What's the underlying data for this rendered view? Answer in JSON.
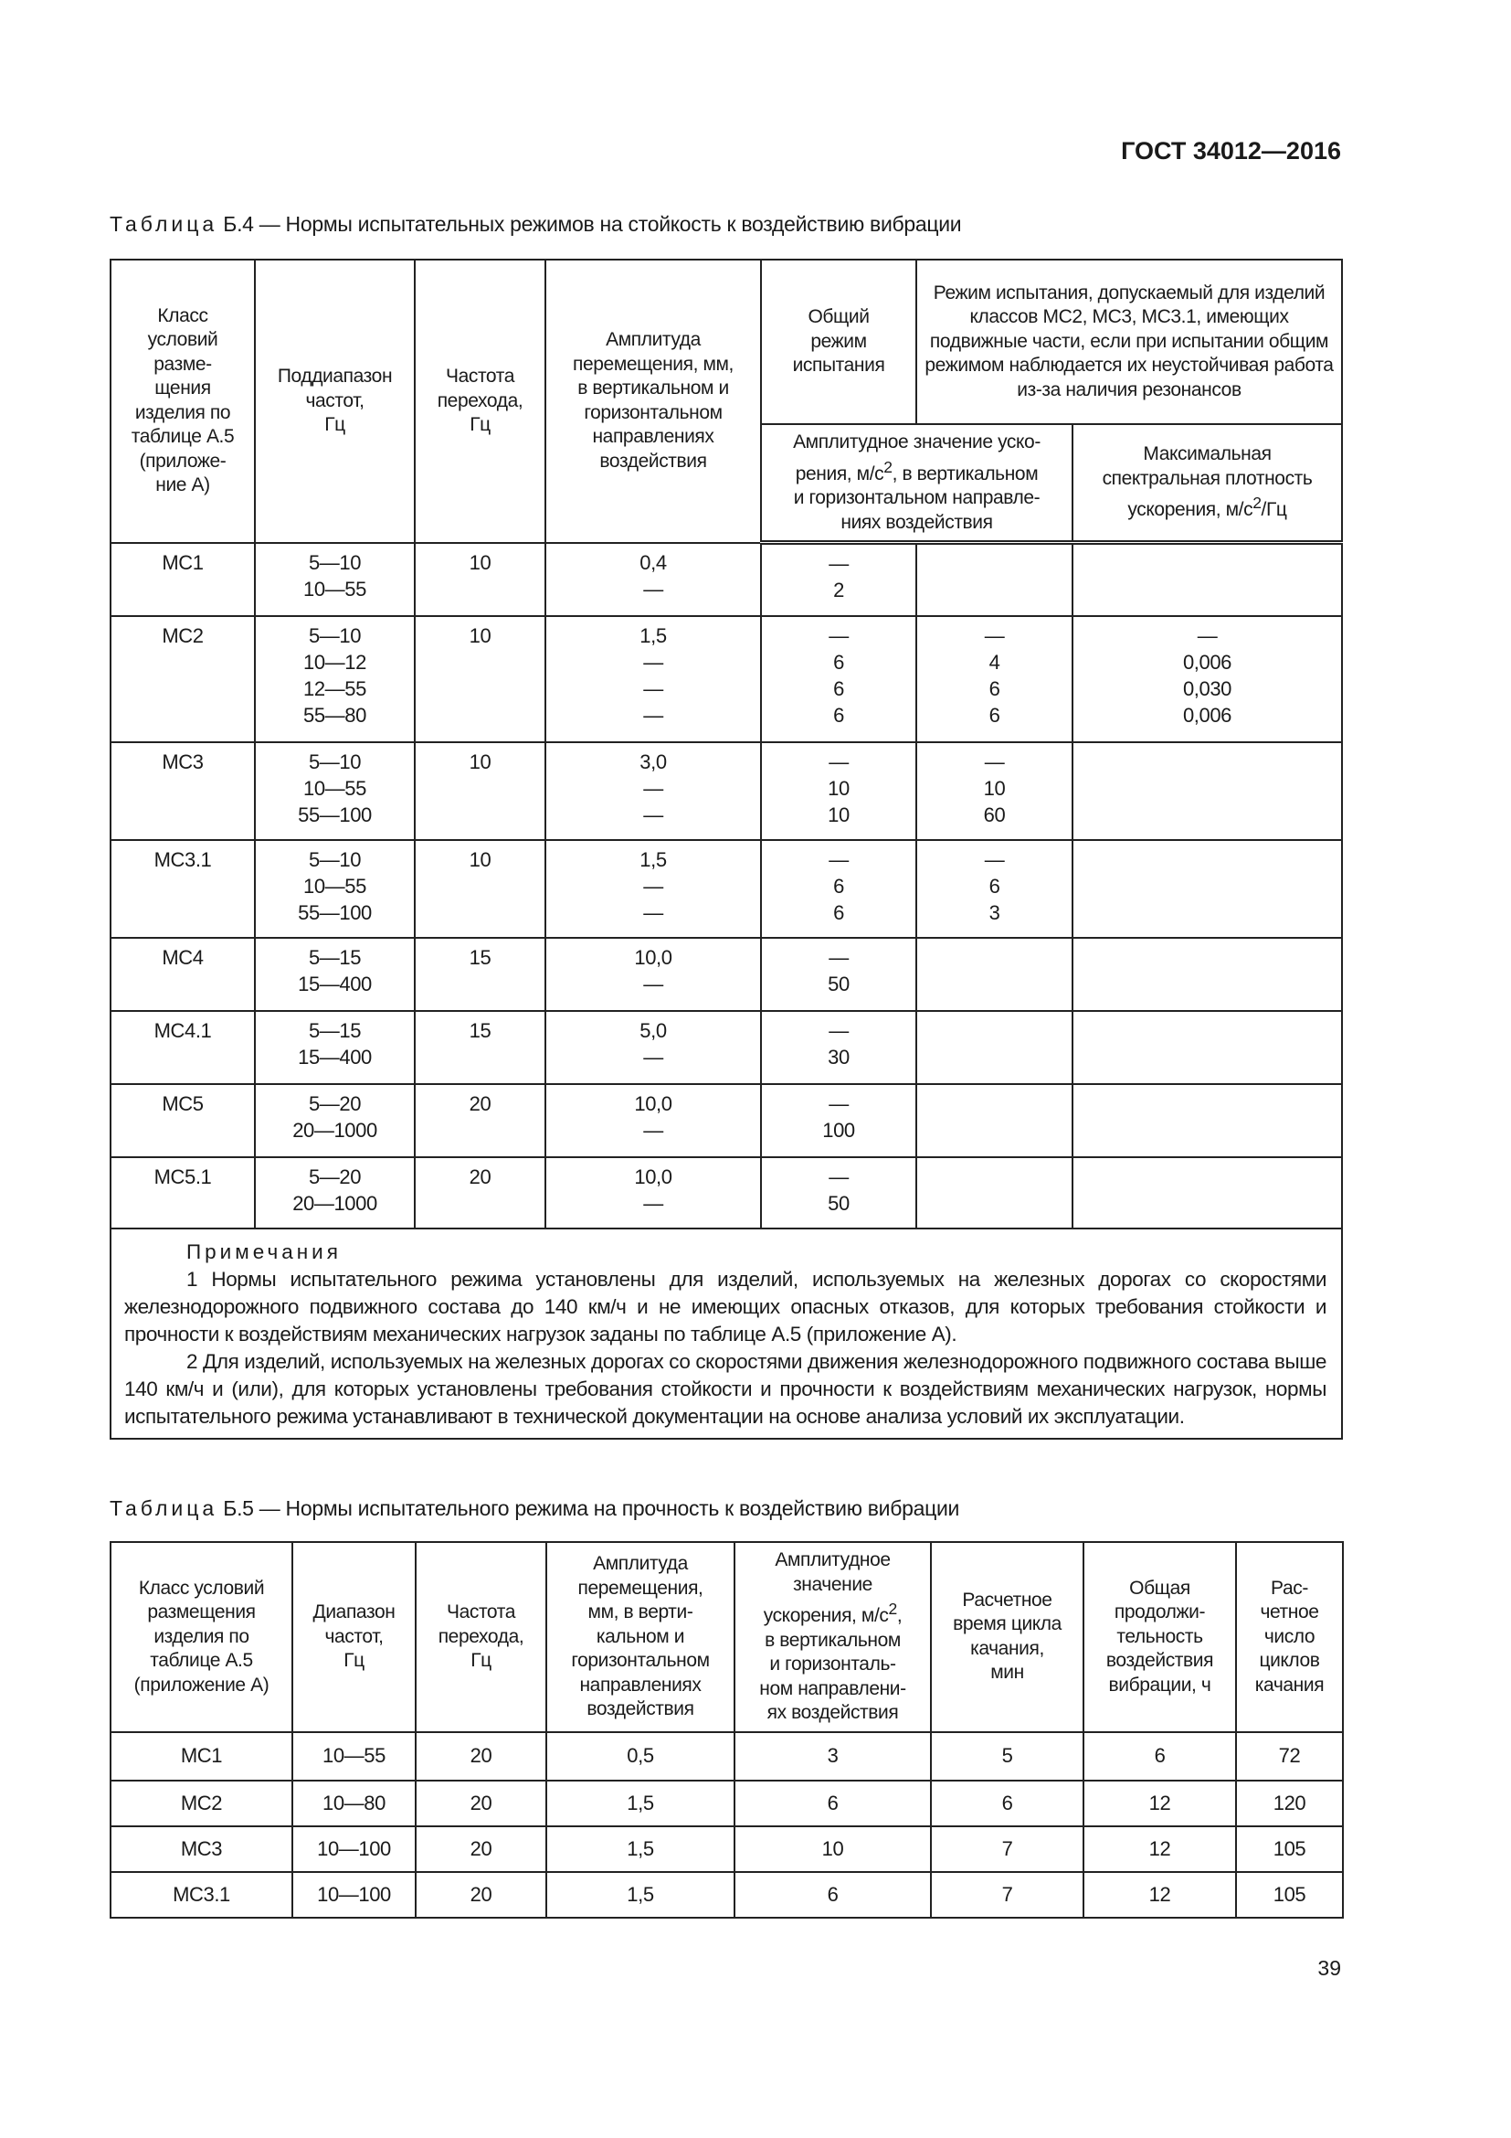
{
  "header": {
    "doc_code": "ГОСТ 34012—2016"
  },
  "table_b4": {
    "caption_word": "Таблица",
    "caption_text": " Б.4 — Нормы испытательных режимов на стойкость к воздействию вибрации",
    "headers": {
      "class": "Класс\nусловий\nразме-\nщения\nизделия по\nтаблице А.5\n(приложе-\nние А)",
      "subrange": "Поддиапазон\nчастот,\nГц",
      "transition": "Частота\nперехода,\nГц",
      "amplitude": "Амплитуда\nперемещения, мм,\nв вертикальном и\nгоризонтальном\nнаправлениях\nвоздействия",
      "general": "Общий\nрежим\nиспытания",
      "allowed": "Режим испытания, допускаемый для изделий классов МС2, МС3, МС3.1, имеющих подвижные части, если при испытании общим режимом наблюдается их неустойчивая работа из-за наличия резонансов",
      "accel_pre": "Амплитудное значение уско-\nрения, м/с",
      "accel_post": ", в вертикальном\nи горизонтальном направле-\nниях воздействия",
      "psd_pre": "Максимальная\nспектральная плотность\nускорения, м/с",
      "psd_post": "/Гц",
      "sup": "2"
    },
    "rows": [
      {
        "cls": "МС1",
        "range": "5—10\n10—55",
        "trans": "10",
        "amp": "0,4\n—",
        "gen": "—\n2",
        "acc": "",
        "psd": ""
      },
      {
        "cls": "МС2",
        "range": "5—10\n10—12\n12—55\n55—80",
        "trans": "10",
        "amp": "1,5\n—\n—\n—",
        "gen": "—\n6\n6\n6",
        "acc": "—\n4\n6\n6",
        "psd": "—\n0,006\n0,030\n0,006"
      },
      {
        "cls": "МС3",
        "range": "5—10\n10—55\n55—100",
        "trans": "10",
        "amp": "3,0\n—\n—",
        "gen": "—\n10\n10",
        "acc": "—\n10\n60",
        "psd": ""
      },
      {
        "cls": "МС3.1",
        "range": "5—10\n10—55\n55—100",
        "trans": "10",
        "amp": "1,5\n—\n—",
        "gen": "—\n6\n6",
        "acc": "—\n6\n3",
        "psd": ""
      },
      {
        "cls": "МС4",
        "range": "5—15\n15—400",
        "trans": "15",
        "amp": "10,0\n—",
        "gen": "—\n50",
        "acc": "",
        "psd": ""
      },
      {
        "cls": "МС4.1",
        "range": "5—15\n15—400",
        "trans": "15",
        "amp": "5,0\n—",
        "gen": "—\n30",
        "acc": "",
        "psd": ""
      },
      {
        "cls": "МС5",
        "range": "5—20\n20—1000",
        "trans": "20",
        "amp": "10,0\n—",
        "gen": "—\n100",
        "acc": "",
        "psd": ""
      },
      {
        "cls": "МС5.1",
        "range": "5—20\n20—1000",
        "trans": "20",
        "amp": "10,0\n—",
        "gen": "—\n50",
        "acc": "",
        "psd": ""
      }
    ],
    "notes_title": "Примечания",
    "notes": [
      "1 Нормы испытательного режима установлены для изделий, используемых на железных дорогах со скоростями железнодорожного подвижного состава до 140 км/ч и не имеющих опасных отказов, для которых требования стойкости и прочности к воздействиям механических нагрузок заданы по таблице А.5 (приложение А).",
      "2 Для изделий, используемых на железных дорогах со скоростями движения железнодорожного подвижного состава выше 140 км/ч и (или), для которых установлены требования стойкости и прочности к воздействиям механических нагрузок, нормы испытательного режима устанавливают в технической документации на основе анализа условий их эксплуатации."
    ]
  },
  "table_b5": {
    "caption_word": "Таблица",
    "caption_text": " Б.5 — Нормы испытательного режима на прочность к воздействию вибрации",
    "headers": {
      "class": "Класс условий\nразмещения\nизделия по\nтаблице А.5\n(приложение А)",
      "range": "Диапазон\nчастот,\nГц",
      "transition": "Частота\nперехода,\nГц",
      "amplitude": "Амплитуда\nперемещения,\nмм, в верти-\nкальном и\nгоризонтальном\nнаправлениях\nвоздействия",
      "accel_pre": "Амплитудное\nзначение\nускорения, м/с",
      "accel_post": ",\nв вертикальном\nи горизонталь-\nном направлени-\nях воздействия",
      "sup": "2",
      "cycle": "Расчетное\nвремя цикла\nкачания,\nмин",
      "duration": "Общая\nпродолжи-\nтельность\nвоздействия\nвибрации, ч",
      "cycles": "Рас-\nчетное\nчисло\nциклов\nкачания"
    },
    "rows": [
      [
        "МС1",
        "10—55",
        "20",
        "0,5",
        "3",
        "5",
        "6",
        "72"
      ],
      [
        "МС2",
        "10—80",
        "20",
        "1,5",
        "6",
        "6",
        "12",
        "120"
      ],
      [
        "МС3",
        "10—100",
        "20",
        "1,5",
        "10",
        "7",
        "12",
        "105"
      ],
      [
        "МС3.1",
        "10—100",
        "20",
        "1,5",
        "6",
        "7",
        "12",
        "105"
      ]
    ]
  },
  "footer": {
    "page_number": "39"
  }
}
